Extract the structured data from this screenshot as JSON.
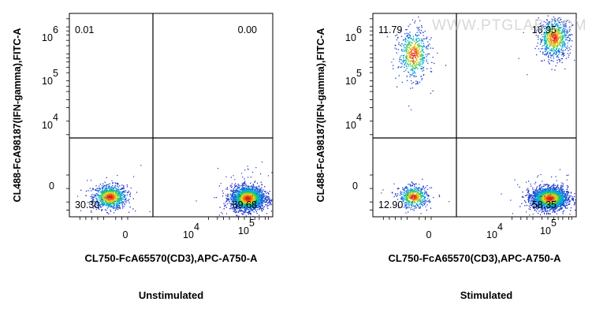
{
  "watermark": "WWW.PTGLAB.COM",
  "chart_data": [
    {
      "type": "scatter",
      "subtype": "flow-cytometry-density-dot-plot",
      "title": "",
      "caption": "Unstimulated",
      "xlabel": "CL750-FcA65570(CD3),APC-A750-A",
      "ylabel": "CL488-FcA98187(IFN-gamma),FITC-A",
      "x_ticks": [
        "0",
        "10^4",
        "10^5"
      ],
      "y_ticks": [
        "0",
        "10^4",
        "10^5",
        "10^6"
      ],
      "quadrants": {
        "upper_left": "0.01",
        "upper_right": "0.00",
        "lower_left": "30.30",
        "lower_right": "69.68"
      },
      "grid": false,
      "populations": [
        {
          "x": 0,
          "y": -0.3,
          "sx": 0.28,
          "sy": 0.22,
          "n": 900,
          "label": "CD3- IFN-gamma-"
        },
        {
          "x": 4.6,
          "y": -0.35,
          "sx": 0.28,
          "sy": 0.22,
          "n": 2100,
          "label": "CD3+ IFN-gamma-"
        }
      ]
    },
    {
      "type": "scatter",
      "subtype": "flow-cytometry-density-dot-plot",
      "title": "",
      "caption": "Stimulated",
      "xlabel": "CL750-FcA65570(CD3),APC-A750-A",
      "ylabel": "CL488-FcA98187(IFN-gamma),FITC-A",
      "x_ticks": [
        "0",
        "10^4",
        "10^5"
      ],
      "y_ticks": [
        "0",
        "10^4",
        "10^5",
        "10^6"
      ],
      "quadrants": {
        "upper_left": "11.79",
        "upper_right": "16.95",
        "lower_left": "12.90",
        "lower_right": "58.35"
      },
      "grid": false,
      "populations": [
        {
          "x": 0,
          "y": 5.0,
          "sx": 0.25,
          "sy": 0.45,
          "n": 550,
          "label": "CD3- IFN-gamma+"
        },
        {
          "x": 4.7,
          "y": 5.6,
          "sx": 0.25,
          "sy": 0.35,
          "n": 750,
          "label": "CD3+ IFN-gamma+"
        },
        {
          "x": 0,
          "y": -0.3,
          "sx": 0.24,
          "sy": 0.2,
          "n": 550,
          "label": "CD3- IFN-gamma-"
        },
        {
          "x": 4.55,
          "y": -0.35,
          "sx": 0.3,
          "sy": 0.2,
          "n": 2200,
          "label": "CD3+ IFN-gamma-"
        }
      ]
    }
  ]
}
